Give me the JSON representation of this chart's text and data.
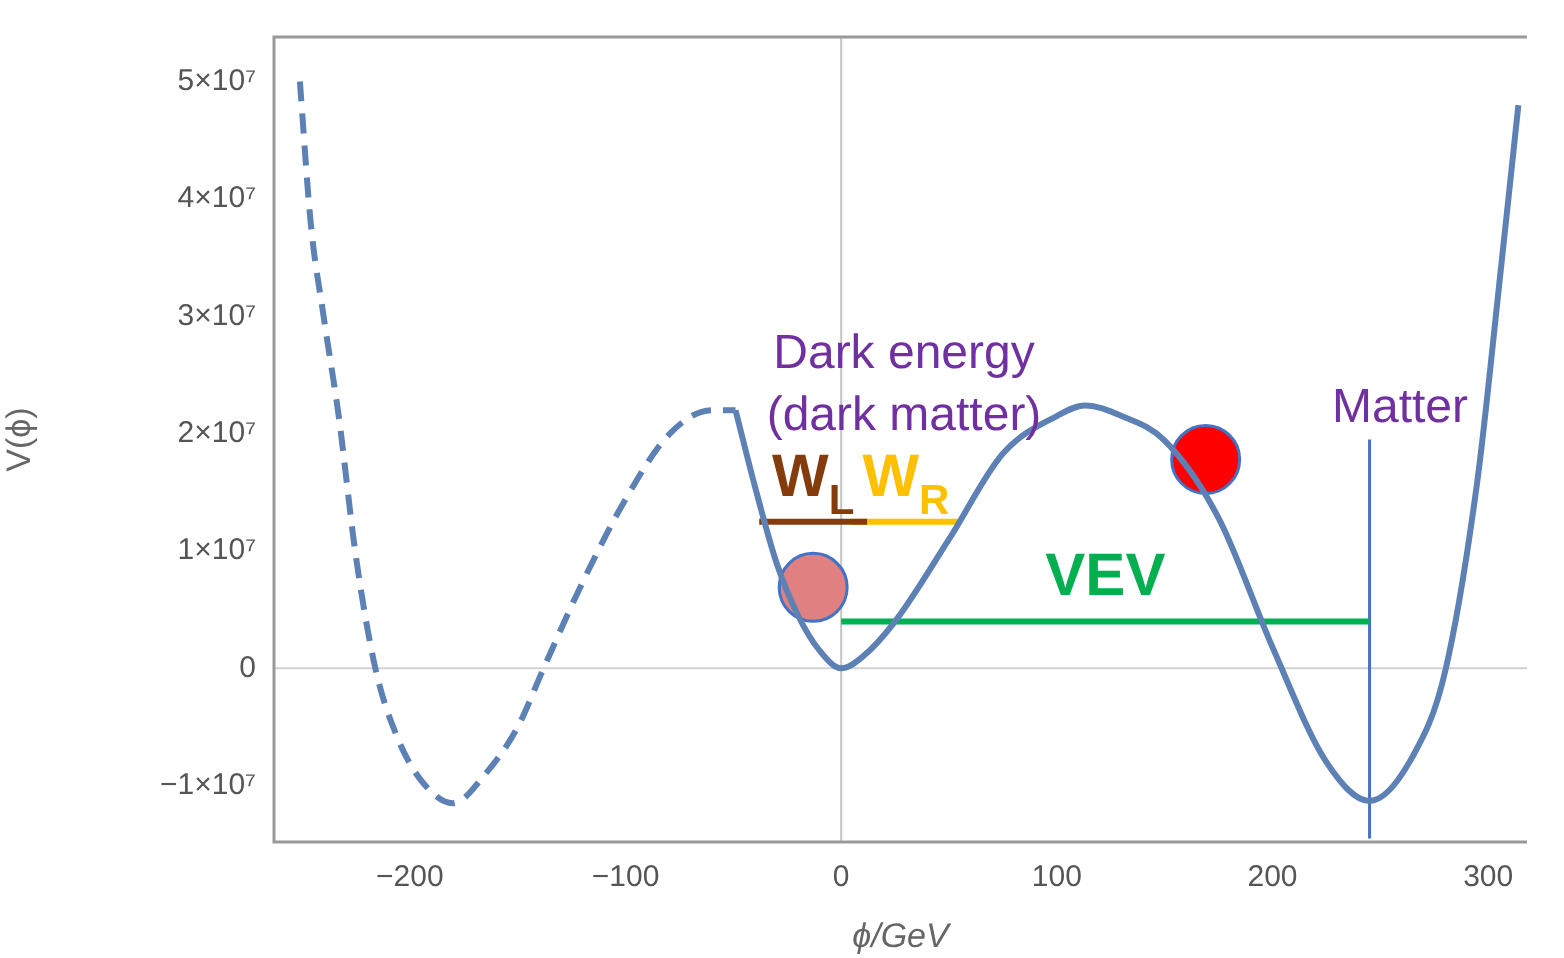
{
  "chart_data": {
    "type": "line",
    "xlabel": "ϕ/GeV",
    "ylabel": "V(ϕ)",
    "xlim": [
      -263,
      318
    ],
    "ylim": [
      -14800000,
      53800000
    ],
    "xticks": [
      -200,
      -100,
      0,
      100,
      200,
      300
    ],
    "yticks": [
      {
        "value": -10000000,
        "label": "−1×10⁷"
      },
      {
        "value": 0,
        "label": "0"
      },
      {
        "value": 10000000,
        "label": "1×10⁷"
      },
      {
        "value": 20000000,
        "label": "2×10⁷"
      },
      {
        "value": 30000000,
        "label": "3×10⁷"
      },
      {
        "value": 40000000,
        "label": "4×10⁷"
      },
      {
        "value": 50000000,
        "label": "5×10⁷"
      }
    ],
    "grid": false,
    "legend": false,
    "marker": "none",
    "ref_lines": [
      {
        "axis": "x",
        "value": 0,
        "color": "#c4c4c4"
      },
      {
        "axis": "y",
        "value": 0,
        "color": "#d2d2d2"
      }
    ],
    "series": [
      {
        "type": "line",
        "line_style": "dashed",
        "color": "#5e81b5",
        "x": [
          -251,
          -246,
          -240,
          -233,
          -225,
          -216,
          -206,
          -195,
          -180,
          -165,
          -150,
          -138,
          -120,
          -100,
          -80,
          -60,
          -49
        ],
        "values": [
          50000000,
          38000000,
          30000000,
          21500000,
          9500000,
          0,
          -5800000,
          -9500000,
          -11500000,
          -9000000,
          -5000000,
          0,
          7300000,
          14400000,
          19900000,
          22000000,
          22000000
        ]
      },
      {
        "type": "line",
        "line_style": "solid",
        "color": "#5e81b5",
        "x": [
          -49,
          -40,
          -30,
          -20,
          -10,
          0,
          10,
          25,
          50,
          75,
          100,
          113,
          130,
          150,
          175,
          200,
          225,
          245,
          265,
          280,
          295,
          305,
          314
        ],
        "values": [
          22000000,
          15500000,
          9000000,
          4500000,
          1500000,
          0,
          1000000,
          4000000,
          11000000,
          18300000,
          21500000,
          22400000,
          21500000,
          19400000,
          12800000,
          1800000,
          -8000000,
          -11300000,
          -7500000,
          -300000,
          16000000,
          32500000,
          48000000
        ]
      },
      {
        "type": "line",
        "name": "VEV",
        "color": "#00b050",
        "x": [
          0,
          245
        ],
        "values": [
          4000000,
          4000000
        ]
      },
      {
        "type": "line",
        "name": "W$_{L}$",
        "color": "#843c0c",
        "x": [
          -38,
          12
        ],
        "values": [
          12500000,
          12500000
        ]
      },
      {
        "type": "line",
        "name": "W$_{R}$",
        "color": "#ffc000",
        "x": [
          5,
          55
        ],
        "values": [
          12500000,
          12500000
        ]
      },
      {
        "type": "line",
        "color": "#4472c4",
        "x": [
          245,
          245
        ],
        "values": [
          -14500000,
          19500000
        ]
      },
      {
        "type": "scatter",
        "marker": "circle",
        "color": "#e08080",
        "x": [
          -13
        ],
        "values": [
          6900000
        ]
      },
      {
        "type": "scatter",
        "marker": "circle",
        "color": "#ff0000",
        "x": [
          169
        ],
        "values": [
          17800000
        ]
      }
    ],
    "annotations": [
      "Dark energy",
      "(dark matter)",
      "Matter"
    ]
  }
}
